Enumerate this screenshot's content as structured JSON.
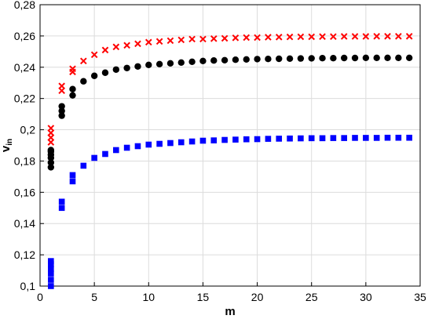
{
  "chart_data": {
    "type": "scatter",
    "title": "",
    "xlabel": "m",
    "ylabel_main": "v",
    "ylabel_sub": "in",
    "xlim": [
      0,
      35
    ],
    "ylim": [
      0.1,
      0.28
    ],
    "xticks": [
      "0",
      "5",
      "10",
      "15",
      "20",
      "25",
      "30",
      "35"
    ],
    "yticks": [
      "0,1",
      "0,12",
      "0,14",
      "0,16",
      "0,18",
      "0,2",
      "0,22",
      "0,24",
      "0,26",
      "0,28"
    ],
    "xtick_values": [
      0,
      5,
      10,
      15,
      20,
      25,
      30,
      35
    ],
    "ytick_values": [
      0.1,
      0.12,
      0.14,
      0.16,
      0.18,
      0.2,
      0.22,
      0.24,
      0.26,
      0.28
    ],
    "grid": true,
    "series": [
      {
        "marker": "x",
        "color": "#ff0000",
        "x": [
          1,
          1,
          1,
          1,
          2,
          2,
          3,
          3,
          4,
          5,
          6,
          7,
          8,
          9,
          10,
          11,
          12,
          13,
          14,
          15,
          16,
          17,
          18,
          19,
          20,
          21,
          22,
          23,
          24,
          25,
          26,
          27,
          28,
          29,
          30,
          31,
          32,
          33,
          34
        ],
        "y": [
          0.192,
          0.195,
          0.198,
          0.201,
          0.225,
          0.228,
          0.237,
          0.239,
          0.244,
          0.248,
          0.251,
          0.253,
          0.254,
          0.255,
          0.256,
          0.2565,
          0.257,
          0.2575,
          0.258,
          0.258,
          0.2583,
          0.2585,
          0.2588,
          0.259,
          0.259,
          0.2592,
          0.2593,
          0.2594,
          0.2595,
          0.2595,
          0.2596,
          0.2596,
          0.2597,
          0.2597,
          0.2597,
          0.2598,
          0.2598,
          0.2598,
          0.2598
        ]
      },
      {
        "marker": "circle",
        "color": "#000000",
        "x": [
          1,
          1,
          1,
          1,
          1,
          1,
          2,
          2,
          2,
          3,
          3,
          4,
          5,
          6,
          7,
          8,
          9,
          10,
          11,
          12,
          13,
          14,
          15,
          16,
          17,
          18,
          19,
          20,
          21,
          22,
          23,
          24,
          25,
          26,
          27,
          28,
          29,
          30,
          31,
          32,
          33,
          34
        ],
        "y": [
          0.176,
          0.179,
          0.182,
          0.184,
          0.186,
          0.187,
          0.209,
          0.212,
          0.215,
          0.222,
          0.226,
          0.231,
          0.2345,
          0.2365,
          0.2385,
          0.2395,
          0.2405,
          0.2415,
          0.242,
          0.2425,
          0.243,
          0.2435,
          0.244,
          0.2443,
          0.2445,
          0.2448,
          0.245,
          0.2452,
          0.2453,
          0.2454,
          0.2455,
          0.2456,
          0.2457,
          0.2458,
          0.2458,
          0.2459,
          0.2459,
          0.246,
          0.246,
          0.246,
          0.246,
          0.246
        ]
      },
      {
        "marker": "square",
        "color": "#0000ff",
        "x": [
          1,
          1,
          1,
          1,
          1,
          1,
          2,
          2,
          3,
          3,
          4,
          5,
          6,
          7,
          8,
          9,
          10,
          11,
          12,
          13,
          14,
          15,
          16,
          17,
          18,
          19,
          20,
          21,
          22,
          23,
          24,
          25,
          26,
          27,
          28,
          29,
          30,
          31,
          32,
          33,
          34
        ],
        "y": [
          0.1,
          0.104,
          0.108,
          0.111,
          0.114,
          0.116,
          0.15,
          0.154,
          0.167,
          0.171,
          0.177,
          0.182,
          0.1845,
          0.187,
          0.1885,
          0.1895,
          0.1905,
          0.191,
          0.1915,
          0.192,
          0.1925,
          0.193,
          0.1932,
          0.1935,
          0.1937,
          0.1939,
          0.194,
          0.1942,
          0.1943,
          0.1944,
          0.1945,
          0.1946,
          0.1946,
          0.1947,
          0.1947,
          0.1948,
          0.1948,
          0.1948,
          0.1949,
          0.1949,
          0.1949
        ]
      }
    ]
  }
}
